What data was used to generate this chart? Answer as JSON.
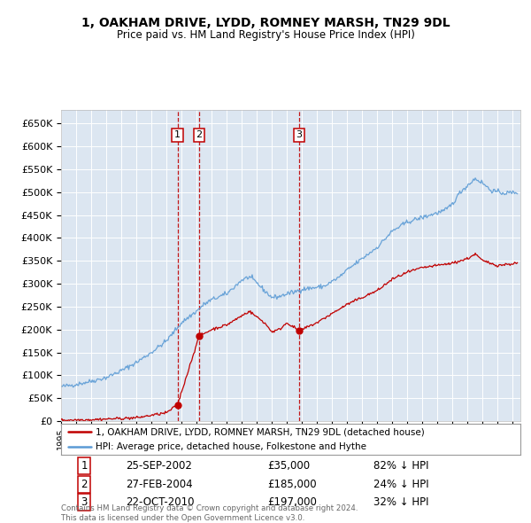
{
  "title": "1, OAKHAM DRIVE, LYDD, ROMNEY MARSH, TN29 9DL",
  "subtitle": "Price paid vs. HM Land Registry's House Price Index (HPI)",
  "background_color": "#ffffff",
  "plot_bg_color": "#dce6f1",
  "grid_color": "#ffffff",
  "hpi_color": "#5b9bd5",
  "price_color": "#c00000",
  "transactions": [
    {
      "num": 1,
      "date_str": "25-SEP-2002",
      "price": 35000,
      "pct": "82% ↓ HPI",
      "date_x": 2002.73
    },
    {
      "num": 2,
      "date_str": "27-FEB-2004",
      "price": 185000,
      "pct": "24% ↓ HPI",
      "date_x": 2004.16
    },
    {
      "num": 3,
      "date_str": "22-OCT-2010",
      "price": 197000,
      "pct": "32% ↓ HPI",
      "date_x": 2010.81
    }
  ],
  "ylim": [
    0,
    680000
  ],
  "xlim_start": 1995.0,
  "xlim_end": 2025.5,
  "yticks": [
    0,
    50000,
    100000,
    150000,
    200000,
    250000,
    300000,
    350000,
    400000,
    450000,
    500000,
    550000,
    600000,
    650000
  ],
  "footnote": "Contains HM Land Registry data © Crown copyright and database right 2024.\nThis data is licensed under the Open Government Licence v3.0.",
  "legend_line1": "1, OAKHAM DRIVE, LYDD, ROMNEY MARSH, TN29 9DL (detached house)",
  "legend_line2": "HPI: Average price, detached house, Folkestone and Hythe"
}
